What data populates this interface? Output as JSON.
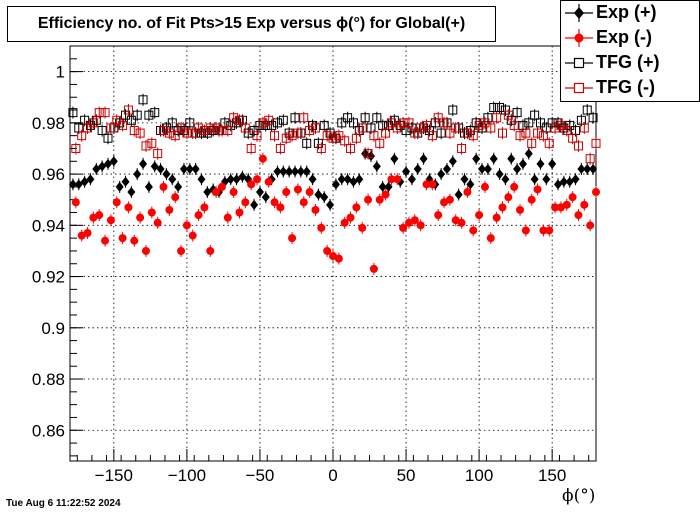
{
  "header": {
    "title": "Efficiency no. of Fit Pts>15 Exp versus ϕ(°) for Global(+)"
  },
  "footer": {
    "timestamp": "Tue Aug  6 11:22:52 2024"
  },
  "chart_data": {
    "type": "scatter",
    "title": "Efficiency no. of Fit Pts>15 Exp versus ϕ(°) for Global(+)",
    "xlabel": "ϕ(°)",
    "ylabel": "",
    "xlim": [
      -180,
      180
    ],
    "ylim": [
      0.848,
      1.01
    ],
    "x_ticks": [
      -150,
      -100,
      -50,
      0,
      50,
      100,
      150
    ],
    "x_tick_labels": [
      "−150",
      "−100",
      "−50",
      "0",
      "50",
      "100",
      "150"
    ],
    "y_ticks": [
      0.86,
      0.88,
      0.9,
      0.92,
      0.94,
      0.96,
      0.98,
      1
    ],
    "y_tick_labels": [
      "0.86",
      "0.88",
      "0.9",
      "0.92",
      "0.94",
      "0.96",
      "0.98",
      "1"
    ],
    "grid": true,
    "legend_position": "top-right",
    "series": [
      {
        "name": "Exp (+)",
        "color": "#000000",
        "marker": "filled-diamond",
        "x": [
          -178,
          -174,
          -170,
          -166,
          -162,
          -158,
          -154,
          -150,
          -146,
          -142,
          -138,
          -134,
          -130,
          -126,
          -122,
          -118,
          -114,
          -110,
          -106,
          -102,
          -98,
          -94,
          -90,
          -86,
          -82,
          -78,
          -74,
          -70,
          -66,
          -62,
          -58,
          -54,
          -50,
          -46,
          -42,
          -38,
          -34,
          -30,
          -26,
          -22,
          -18,
          -14,
          -10,
          -6,
          -2,
          2,
          6,
          10,
          14,
          18,
          22,
          26,
          30,
          34,
          38,
          42,
          46,
          50,
          54,
          58,
          62,
          66,
          70,
          74,
          78,
          82,
          86,
          90,
          94,
          98,
          102,
          106,
          110,
          114,
          118,
          122,
          126,
          130,
          134,
          138,
          142,
          146,
          150,
          154,
          158,
          162,
          166,
          170,
          174,
          178
        ],
        "values": [
          0.956,
          0.956,
          0.957,
          0.958,
          0.962,
          0.963,
          0.964,
          0.965,
          0.955,
          0.957,
          0.953,
          0.96,
          0.964,
          0.955,
          0.963,
          0.962,
          0.96,
          0.958,
          0.955,
          0.962,
          0.962,
          0.962,
          0.958,
          0.953,
          0.954,
          0.953,
          0.957,
          0.958,
          0.958,
          0.959,
          0.958,
          0.948,
          0.953,
          0.951,
          0.958,
          0.961,
          0.961,
          0.961,
          0.961,
          0.961,
          0.961,
          0.958,
          0.952,
          0.951,
          0.948,
          0.956,
          0.958,
          0.958,
          0.957,
          0.958,
          0.968,
          0.967,
          0.963,
          0.955,
          0.955,
          0.966,
          0.957,
          0.961,
          0.958,
          0.962,
          0.966,
          0.958,
          0.956,
          0.96,
          0.962,
          0.965,
          0.952,
          0.958,
          0.956,
          0.966,
          0.962,
          0.962,
          0.966,
          0.96,
          0.958,
          0.966,
          0.962,
          0.964,
          0.968,
          0.958,
          0.964,
          0.958,
          0.964,
          0.956,
          0.957,
          0.957,
          0.958,
          0.962,
          0.962,
          0.962
        ]
      },
      {
        "name": "Exp (-)",
        "color": "#ff0000",
        "marker": "filled-circle",
        "x": [
          -176,
          -172,
          -168,
          -164,
          -160,
          -156,
          -152,
          -148,
          -144,
          -140,
          -136,
          -132,
          -128,
          -124,
          -120,
          -116,
          -112,
          -108,
          -104,
          -100,
          -96,
          -92,
          -88,
          -84,
          -80,
          -76,
          -72,
          -68,
          -64,
          -60,
          -56,
          -52,
          -48,
          -44,
          -40,
          -36,
          -32,
          -28,
          -24,
          -20,
          -16,
          -12,
          -8,
          -4,
          0,
          4,
          8,
          12,
          16,
          20,
          24,
          28,
          32,
          36,
          40,
          44,
          48,
          52,
          56,
          60,
          64,
          68,
          72,
          76,
          80,
          84,
          88,
          92,
          96,
          100,
          104,
          108,
          112,
          116,
          120,
          124,
          128,
          132,
          136,
          140,
          144,
          148,
          152,
          156,
          160,
          164,
          168,
          172,
          176,
          180
        ],
        "values": [
          0.949,
          0.936,
          0.937,
          0.943,
          0.944,
          0.934,
          0.942,
          0.949,
          0.935,
          0.947,
          0.934,
          0.943,
          0.93,
          0.945,
          0.941,
          0.955,
          0.946,
          0.951,
          0.93,
          0.94,
          0.936,
          0.944,
          0.947,
          0.93,
          0.953,
          0.955,
          0.943,
          0.953,
          0.945,
          0.949,
          0.956,
          0.958,
          0.966,
          0.957,
          0.949,
          0.947,
          0.953,
          0.935,
          0.954,
          0.949,
          0.953,
          0.946,
          0.939,
          0.93,
          0.928,
          0.927,
          0.941,
          0.943,
          0.947,
          0.939,
          0.95,
          0.923,
          0.95,
          0.952,
          0.958,
          0.958,
          0.939,
          0.941,
          0.942,
          0.94,
          0.956,
          0.956,
          0.944,
          0.949,
          0.95,
          0.942,
          0.941,
          0.953,
          0.938,
          0.944,
          0.955,
          0.935,
          0.943,
          0.947,
          0.951,
          0.955,
          0.946,
          0.938,
          0.95,
          0.954,
          0.938,
          0.938,
          0.947,
          0.947,
          0.948,
          0.951,
          0.944,
          0.948,
          0.94,
          0.953
        ]
      },
      {
        "name": "TFG (+)",
        "color": "#000000",
        "marker": "open-square",
        "x": [
          -178,
          -174,
          -170,
          -166,
          -162,
          -158,
          -154,
          -150,
          -146,
          -142,
          -138,
          -134,
          -130,
          -126,
          -122,
          -118,
          -114,
          -110,
          -106,
          -102,
          -98,
          -94,
          -90,
          -86,
          -82,
          -78,
          -74,
          -70,
          -66,
          -62,
          -58,
          -54,
          -50,
          -46,
          -42,
          -38,
          -34,
          -30,
          -26,
          -22,
          -18,
          -14,
          -10,
          -6,
          -2,
          2,
          6,
          10,
          14,
          18,
          22,
          26,
          30,
          34,
          38,
          42,
          46,
          50,
          54,
          58,
          62,
          66,
          70,
          74,
          78,
          82,
          86,
          90,
          94,
          98,
          102,
          106,
          110,
          114,
          118,
          122,
          126,
          130,
          134,
          138,
          142,
          146,
          150,
          154,
          158,
          162,
          166,
          170,
          174,
          178
        ],
        "values": [
          0.984,
          0.978,
          0.981,
          0.979,
          0.981,
          0.977,
          0.974,
          0.978,
          0.98,
          0.983,
          0.981,
          0.983,
          0.989,
          0.983,
          0.984,
          0.977,
          0.978,
          0.98,
          0.977,
          0.977,
          0.98,
          0.976,
          0.976,
          0.976,
          0.977,
          0.977,
          0.98,
          0.979,
          0.98,
          0.981,
          0.976,
          0.977,
          0.979,
          0.979,
          0.979,
          0.98,
          0.981,
          0.976,
          0.982,
          0.976,
          0.972,
          0.979,
          0.972,
          0.979,
          0.976,
          0.974,
          0.98,
          0.982,
          0.98,
          0.977,
          0.982,
          0.978,
          0.982,
          0.979,
          0.979,
          0.981,
          0.979,
          0.977,
          0.978,
          0.976,
          0.978,
          0.977,
          0.98,
          0.976,
          0.98,
          0.985,
          0.978,
          0.976,
          0.977,
          0.98,
          0.978,
          0.982,
          0.986,
          0.986,
          0.985,
          0.981,
          0.984,
          0.979,
          0.98,
          0.983,
          0.98,
          0.978,
          0.98,
          0.98,
          0.978,
          0.979,
          0.977,
          0.981,
          0.985,
          0.982
        ]
      },
      {
        "name": "TFG (-)",
        "color": "#cc0000",
        "marker": "open-square",
        "x": [
          -176,
          -172,
          -168,
          -164,
          -160,
          -156,
          -152,
          -148,
          -144,
          -140,
          -136,
          -132,
          -128,
          -124,
          -120,
          -116,
          -112,
          -108,
          -104,
          -100,
          -96,
          -92,
          -88,
          -84,
          -80,
          -76,
          -72,
          -68,
          -64,
          -60,
          -56,
          -52,
          -48,
          -44,
          -40,
          -36,
          -32,
          -28,
          -24,
          -20,
          -16,
          -12,
          -8,
          -4,
          0,
          4,
          8,
          12,
          16,
          20,
          24,
          28,
          32,
          36,
          40,
          44,
          48,
          52,
          56,
          60,
          64,
          68,
          72,
          76,
          80,
          84,
          88,
          92,
          96,
          100,
          104,
          108,
          112,
          116,
          120,
          124,
          128,
          132,
          136,
          140,
          144,
          148,
          152,
          156,
          160,
          164,
          168,
          172,
          176,
          180
        ],
        "values": [
          0.97,
          0.975,
          0.978,
          0.98,
          0.984,
          0.984,
          0.978,
          0.981,
          0.979,
          0.985,
          0.977,
          0.976,
          0.971,
          0.972,
          0.968,
          0.977,
          0.976,
          0.975,
          0.978,
          0.976,
          0.976,
          0.978,
          0.977,
          0.978,
          0.978,
          0.977,
          0.977,
          0.982,
          0.981,
          0.978,
          0.97,
          0.975,
          0.98,
          0.981,
          0.975,
          0.97,
          0.974,
          0.975,
          0.976,
          0.982,
          0.977,
          0.978,
          0.97,
          0.975,
          0.974,
          0.975,
          0.973,
          0.97,
          0.974,
          0.978,
          0.968,
          0.975,
          0.972,
          0.976,
          0.98,
          0.978,
          0.98,
          0.98,
          0.976,
          0.978,
          0.979,
          0.975,
          0.982,
          0.98,
          0.976,
          0.978,
          0.97,
          0.976,
          0.975,
          0.979,
          0.98,
          0.978,
          0.982,
          0.976,
          0.983,
          0.979,
          0.975,
          0.976,
          0.972,
          0.976,
          0.975,
          0.972,
          0.978,
          0.979,
          0.977,
          0.974,
          0.971,
          0.978,
          0.966,
          0.972
        ]
      }
    ]
  }
}
